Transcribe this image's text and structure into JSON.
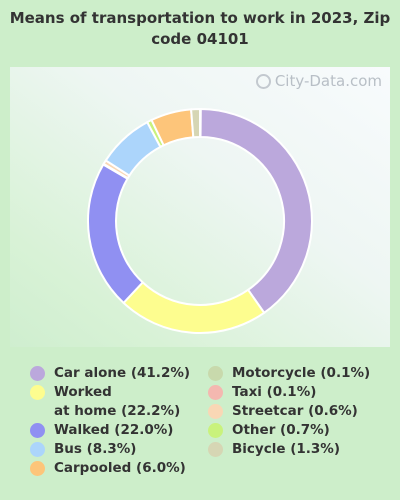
{
  "chart_data": {
    "type": "pie",
    "title": "Means of transportation to work in 2023, Zip code 04101",
    "slices": [
      {
        "label": "Car alone (41.2%)",
        "value": 41.2,
        "color": "#bba8dc"
      },
      {
        "label": "Worked at home (22.2%)",
        "value": 22.2,
        "color": "#fdfd8f"
      },
      {
        "label": "Walked (22.0%)",
        "value": 22.0,
        "color": "#9090f2"
      },
      {
        "label": "Taxi (0.1%)",
        "value": 0.1,
        "color": "#f4b8b0"
      },
      {
        "label": "Streetcar (0.6%)",
        "value": 0.6,
        "color": "#f9d7b5"
      },
      {
        "label": "Bus (8.3%)",
        "value": 8.3,
        "color": "#acd5fb"
      },
      {
        "label": "Other (0.7%)",
        "value": 0.7,
        "color": "#c9f27c"
      },
      {
        "label": "Carpooled (6.0%)",
        "value": 6.0,
        "color": "#fdc57a"
      },
      {
        "label": "Bicycle (1.3%)",
        "value": 1.3,
        "color": "#d6d6b4"
      },
      {
        "label": "Motorcycle (0.1%)",
        "value": 0.1,
        "color": "#c8d9ac"
      }
    ],
    "legend_placement": "bottom"
  },
  "watermark": "City-Data.com",
  "legend": {
    "left": [
      {
        "lines": [
          "Car alone (41.2%)"
        ],
        "color": "#bba8dc"
      },
      {
        "lines": [
          "Worked",
          "at home (22.2%)"
        ],
        "color": "#fdfd8f"
      },
      {
        "lines": [
          "Walked (22.0%)"
        ],
        "color": "#9090f2"
      },
      {
        "lines": [
          "Bus (8.3%)"
        ],
        "color": "#acd5fb"
      },
      {
        "lines": [
          "Carpooled (6.0%)"
        ],
        "color": "#fdc57a"
      }
    ],
    "right": [
      {
        "lines": [
          "Motorcycle (0.1%)"
        ],
        "color": "#c8d9ac"
      },
      {
        "lines": [
          "Taxi (0.1%)"
        ],
        "color": "#f4b8b0"
      },
      {
        "lines": [
          "Streetcar (0.6%)"
        ],
        "color": "#f9d7b5"
      },
      {
        "lines": [
          "Other (0.7%)"
        ],
        "color": "#c9f27c"
      },
      {
        "lines": [
          "Bicycle (1.3%)"
        ],
        "color": "#d6d6b4"
      }
    ]
  }
}
